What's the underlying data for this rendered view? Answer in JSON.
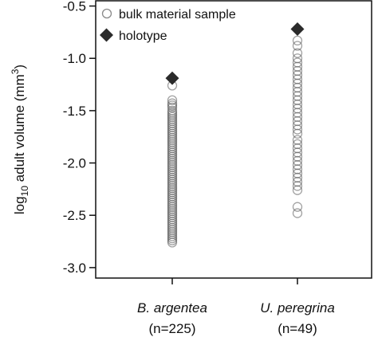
{
  "chart_data": {
    "type": "scatter",
    "ylabel": {
      "prefix": "log",
      "subscript": "10",
      "text": " adult volume (mm",
      "superscript": "3",
      "suffix": ")"
    },
    "ylim": [
      -3.1,
      -0.45
    ],
    "yticks": [
      "-0.5",
      "-1.0",
      "-1.5",
      "-2.0",
      "-2.5",
      "-3.0"
    ],
    "ytick_values": [
      -0.5,
      -1.0,
      -1.5,
      -2.0,
      -2.5,
      -3.0
    ],
    "legend_position": "top-left",
    "legend": [
      {
        "label": "bulk material sample",
        "marker": "open-circle",
        "color": "#8a8a8a"
      },
      {
        "label": "holotype",
        "marker": "filled-diamond",
        "color": "#2b2b2b"
      }
    ],
    "categories": [
      {
        "name": "B. argentea",
        "n": "(n=225)"
      },
      {
        "name": "U. peregrina",
        "n": "(n=49)"
      }
    ],
    "series": [
      {
        "name": "bulk material sample",
        "category": "B. argentea",
        "values": [
          -1.26,
          -1.4,
          -1.43,
          -1.45,
          -1.47,
          -1.5,
          -1.52,
          -1.54,
          -1.56,
          -1.58,
          -1.6,
          -1.62,
          -1.64,
          -1.66,
          -1.68,
          -1.7,
          -1.72,
          -1.74,
          -1.76,
          -1.78,
          -1.8,
          -1.82,
          -1.84,
          -1.86,
          -1.88,
          -1.9,
          -1.92,
          -1.94,
          -1.96,
          -1.98,
          -2.0,
          -2.02,
          -2.04,
          -2.06,
          -2.08,
          -2.1,
          -2.12,
          -2.14,
          -2.16,
          -2.18,
          -2.2,
          -2.22,
          -2.24,
          -2.26,
          -2.28,
          -2.3,
          -2.32,
          -2.34,
          -2.36,
          -2.38,
          -2.4,
          -2.42,
          -2.44,
          -2.46,
          -2.48,
          -2.5,
          -2.52,
          -2.54,
          -2.56,
          -2.58,
          -2.6,
          -2.62,
          -2.64,
          -2.66,
          -2.68,
          -2.7,
          -2.72,
          -2.74,
          -2.76
        ]
      },
      {
        "name": "bulk material sample",
        "category": "U. peregrina",
        "values": [
          -0.83,
          -0.88,
          -0.95,
          -1.0,
          -1.04,
          -1.08,
          -1.12,
          -1.16,
          -1.2,
          -1.24,
          -1.28,
          -1.32,
          -1.36,
          -1.4,
          -1.44,
          -1.48,
          -1.52,
          -1.56,
          -1.6,
          -1.64,
          -1.68,
          -1.72,
          -1.78,
          -1.82,
          -1.86,
          -1.9,
          -1.94,
          -1.98,
          -2.02,
          -2.06,
          -2.1,
          -2.14,
          -2.18,
          -2.22,
          -2.26,
          -2.42,
          -2.48
        ]
      },
      {
        "name": "holotype",
        "category": "B. argentea",
        "values": [
          -1.19
        ]
      },
      {
        "name": "holotype",
        "category": "U. peregrina",
        "values": [
          -0.72
        ]
      }
    ]
  }
}
